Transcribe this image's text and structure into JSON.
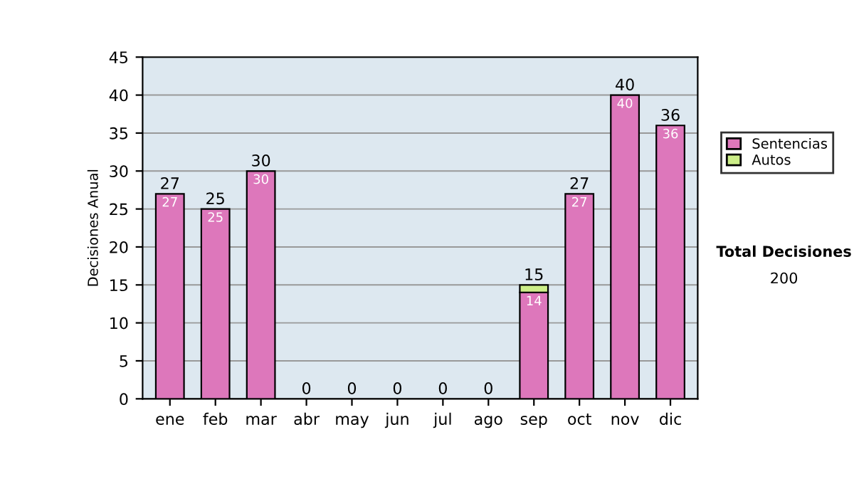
{
  "chart_data": {
    "type": "bar",
    "ylabel": "Decisiones Anual",
    "categories": [
      "ene",
      "feb",
      "mar",
      "abr",
      "may",
      "jun",
      "jul",
      "ago",
      "sep",
      "oct",
      "nov",
      "dic"
    ],
    "stacked": true,
    "series": [
      {
        "name": "Sentencias",
        "color": "#dd77bb",
        "values": [
          27,
          25,
          30,
          0,
          0,
          0,
          0,
          0,
          14,
          27,
          40,
          36
        ],
        "value_labels": [
          "27",
          "25",
          "30",
          null,
          null,
          null,
          null,
          null,
          "14",
          "27",
          "40",
          "36"
        ]
      },
      {
        "name": "Autos",
        "color": "#ccee88",
        "values": [
          0,
          0,
          0,
          0,
          0,
          0,
          0,
          0,
          1,
          0,
          0,
          0
        ]
      }
    ],
    "totals": [
      "27",
      "25",
      "30",
      "0",
      "0",
      "0",
      "0",
      "0",
      "15",
      "27",
      "40",
      "36"
    ],
    "ylim": [
      0,
      45
    ],
    "yticks": [
      0,
      5,
      10,
      15,
      20,
      25,
      30,
      35,
      40,
      45
    ],
    "grid": "y",
    "legend": "right",
    "annotations": [
      "Total Decisiones",
      "200"
    ]
  }
}
